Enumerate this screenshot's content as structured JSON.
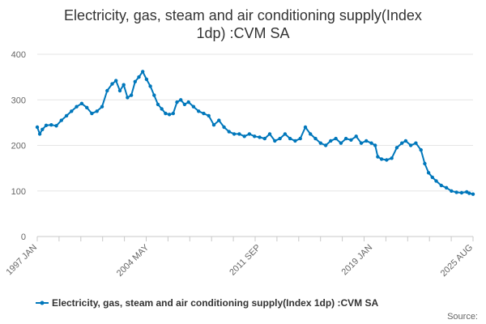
{
  "chart_data": {
    "type": "line",
    "title_line1": "Electricity, gas, steam and air conditioning supply(Index",
    "title_line2": "1dp) :CVM SA",
    "xlabel": "",
    "ylabel": "",
    "ylim": [
      0,
      400
    ],
    "yticks": [
      0,
      100,
      200,
      300,
      400
    ],
    "x_tick_labels": [
      "1997 JAN",
      "2004 MAY",
      "2011 SEP",
      "2019 JAN",
      "2025 AUG"
    ],
    "x_range": [
      "1997-01",
      "2025-08"
    ],
    "grid": true,
    "legend_position": "bottom",
    "series": [
      {
        "name": "Electricity, gas, steam and air conditioning supply(Index 1dp) :CVM SA",
        "color": "#0077bb",
        "points": [
          [
            "1997-01",
            240
          ],
          [
            "1997-03",
            225
          ],
          [
            "1997-05",
            235
          ],
          [
            "1997-08",
            244
          ],
          [
            "1997-12",
            245
          ],
          [
            "1998-04",
            243
          ],
          [
            "1998-08",
            255
          ],
          [
            "1998-12",
            265
          ],
          [
            "1999-04",
            275
          ],
          [
            "1999-08",
            285
          ],
          [
            "1999-12",
            292
          ],
          [
            "2000-04",
            283
          ],
          [
            "2000-08",
            270
          ],
          [
            "2000-12",
            275
          ],
          [
            "2001-04",
            285
          ],
          [
            "2001-08",
            320
          ],
          [
            "2001-12",
            335
          ],
          [
            "2002-03",
            342
          ],
          [
            "2002-06",
            320
          ],
          [
            "2002-09",
            333
          ],
          [
            "2002-12",
            305
          ],
          [
            "2003-03",
            310
          ],
          [
            "2003-06",
            340
          ],
          [
            "2003-09",
            350
          ],
          [
            "2003-12",
            362
          ],
          [
            "2004-03",
            345
          ],
          [
            "2004-06",
            330
          ],
          [
            "2004-09",
            310
          ],
          [
            "2004-12",
            290
          ],
          [
            "2005-03",
            280
          ],
          [
            "2005-06",
            270
          ],
          [
            "2005-09",
            268
          ],
          [
            "2005-12",
            270
          ],
          [
            "2006-03",
            295
          ],
          [
            "2006-06",
            300
          ],
          [
            "2006-09",
            290
          ],
          [
            "2006-12",
            295
          ],
          [
            "2007-04",
            285
          ],
          [
            "2007-08",
            275
          ],
          [
            "2007-12",
            270
          ],
          [
            "2008-04",
            265
          ],
          [
            "2008-08",
            245
          ],
          [
            "2008-12",
            255
          ],
          [
            "2009-04",
            240
          ],
          [
            "2009-08",
            230
          ],
          [
            "2009-12",
            225
          ],
          [
            "2010-04",
            225
          ],
          [
            "2010-08",
            220
          ],
          [
            "2010-12",
            225
          ],
          [
            "2011-04",
            220
          ],
          [
            "2011-08",
            218
          ],
          [
            "2011-12",
            215
          ],
          [
            "2012-04",
            225
          ],
          [
            "2012-08",
            210
          ],
          [
            "2012-12",
            215
          ],
          [
            "2013-04",
            225
          ],
          [
            "2013-08",
            215
          ],
          [
            "2013-12",
            210
          ],
          [
            "2014-04",
            215
          ],
          [
            "2014-08",
            240
          ],
          [
            "2014-12",
            225
          ],
          [
            "2015-04",
            215
          ],
          [
            "2015-08",
            205
          ],
          [
            "2015-12",
            200
          ],
          [
            "2016-04",
            210
          ],
          [
            "2016-08",
            215
          ],
          [
            "2016-12",
            205
          ],
          [
            "2017-04",
            215
          ],
          [
            "2017-08",
            212
          ],
          [
            "2017-12",
            220
          ],
          [
            "2018-04",
            205
          ],
          [
            "2018-08",
            210
          ],
          [
            "2018-12",
            205
          ],
          [
            "2019-03",
            200
          ],
          [
            "2019-05",
            175
          ],
          [
            "2019-08",
            170
          ],
          [
            "2019-12",
            168
          ],
          [
            "2020-04",
            172
          ],
          [
            "2020-08",
            195
          ],
          [
            "2020-12",
            205
          ],
          [
            "2021-03",
            210
          ],
          [
            "2021-07",
            200
          ],
          [
            "2021-11",
            205
          ],
          [
            "2022-03",
            190
          ],
          [
            "2022-06",
            160
          ],
          [
            "2022-09",
            140
          ],
          [
            "2022-12",
            130
          ],
          [
            "2023-03",
            122
          ],
          [
            "2023-07",
            112
          ],
          [
            "2023-11",
            107
          ],
          [
            "2024-03",
            100
          ],
          [
            "2024-07",
            97
          ],
          [
            "2024-11",
            96
          ],
          [
            "2025-03",
            98
          ],
          [
            "2025-05",
            95
          ],
          [
            "2025-08",
            93
          ]
        ]
      }
    ]
  },
  "legend": {
    "label": "Electricity, gas, steam and air conditioning supply(Index 1dp) :CVM SA"
  },
  "source": {
    "label": "Source:"
  }
}
